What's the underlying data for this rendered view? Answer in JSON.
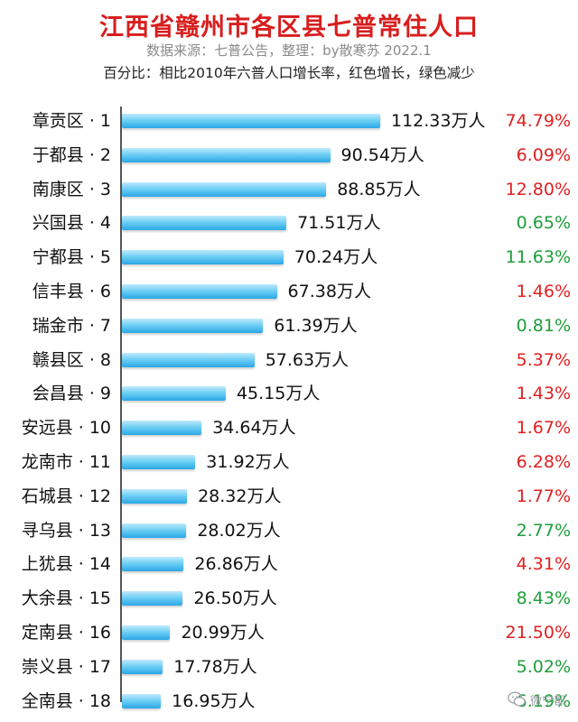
{
  "title": "江西省赣州市各区县七普常住人口",
  "subtitle": "数据来源：七普公告，整理：by散寒苏 2022.1",
  "note": "百分比：相比2010年六普人口增长率，红色增长，绿色减少",
  "colors": {
    "title": "#d81e1e",
    "growth": "#e02020",
    "decline": "#1e9e3a",
    "bar": "#3bb3ea"
  },
  "watermark": {
    "icon": "wechat-icon",
    "text": "微宁都"
  },
  "chart_data": {
    "type": "bar",
    "orientation": "horizontal",
    "title": "江西省赣州市各区县七普常住人口",
    "unit": "万人",
    "categories": [
      "章贡区 · 1",
      "于都县 · 2",
      "南康区 · 3",
      "兴国县 · 4",
      "宁都县 · 5",
      "信丰县 · 6",
      "瑞金市 · 7",
      "赣县区 · 8",
      "会昌县 · 9",
      "安远县 · 10",
      "龙南市 · 11",
      "石城县 · 12",
      "寻乌县 · 13",
      "上犹县 · 14",
      "大余县 · 15",
      "定南县 · 16",
      "崇义县 · 17",
      "全南县 · 18"
    ],
    "values": [
      112.33,
      90.54,
      88.85,
      71.51,
      70.24,
      67.38,
      61.39,
      57.63,
      45.15,
      34.64,
      31.92,
      28.32,
      28.02,
      26.86,
      26.5,
      20.99,
      17.78,
      16.95
    ],
    "value_labels": [
      "112.33万人",
      "90.54万人",
      "88.85万人",
      "71.51万人",
      "70.24万人",
      "67.38万人",
      "61.39万人",
      "57.63万人",
      "45.15万人",
      "34.64万人",
      "31.92万人",
      "28.32万人",
      "28.02万人",
      "26.86万人",
      "26.50万人",
      "20.99万人",
      "17.78万人",
      "16.95万人"
    ],
    "growth_labels": [
      "74.79%",
      "6.09%",
      "12.80%",
      "0.65%",
      "11.63%",
      "1.46%",
      "0.81%",
      "5.37%",
      "1.43%",
      "1.67%",
      "6.28%",
      "1.77%",
      "2.77%",
      "4.31%",
      "8.43%",
      "21.50%",
      "5.02%",
      "6.19%"
    ],
    "growth_trend": [
      "growth",
      "growth",
      "growth",
      "decline",
      "decline",
      "growth",
      "decline",
      "growth",
      "growth",
      "growth",
      "growth",
      "growth",
      "decline",
      "growth",
      "decline",
      "growth",
      "decline",
      "decline"
    ],
    "grid": false,
    "legend": "none"
  }
}
